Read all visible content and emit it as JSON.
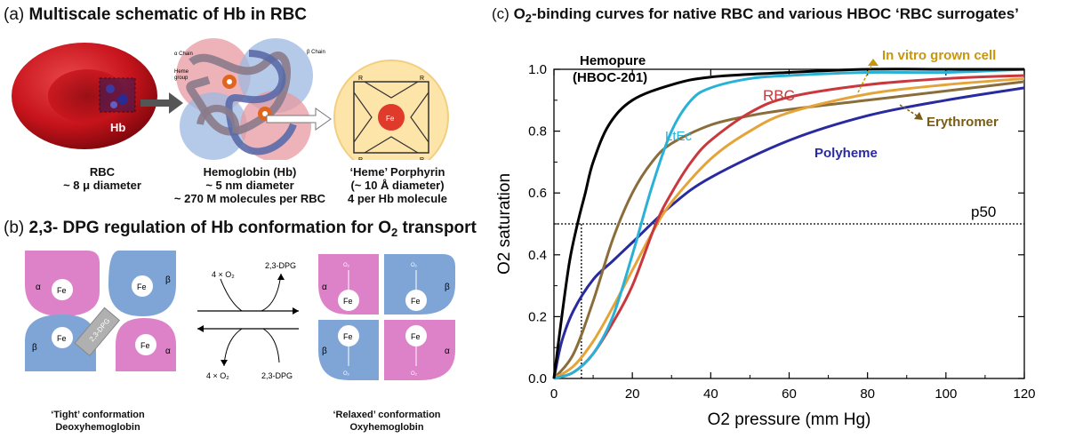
{
  "panel_a": {
    "label": "(a)",
    "title": "Multiscale schematic of Hb in RBC",
    "hb_tag": "Hb",
    "alpha_chain": "α Chain",
    "beta_chain": "β Chain",
    "heme_group_1": "Heme",
    "heme_group_2": "group",
    "porphyrin_fe": "Fe",
    "porphyrin_r": "R",
    "rbc_caption": [
      "RBC",
      "~ 8 μ diameter"
    ],
    "hb_caption": [
      "Hemoglobin (Hb)",
      "~ 5 nm diameter",
      "~ 270 M molecules per RBC"
    ],
    "heme_caption": [
      "‘Heme’ Porphyrin",
      "(~ 10 Å diameter)",
      "4 per Hb molecule"
    ]
  },
  "panel_b": {
    "label": "(b)",
    "title_pre": "2,3- DPG regulation of Hb conformation for O",
    "title_sub": "2",
    "title_post": " transport",
    "fe": "Fe",
    "alpha": "α",
    "beta": "β",
    "dpg_bridge": "2,3-DPG",
    "o2_small": "O₂",
    "top_left_reagent": "4 × O₂",
    "top_right_reagent": "2,3-DPG",
    "bottom_left_reagent": "4 × O₂",
    "bottom_right_reagent": "2,3-DPG",
    "tight_caption": [
      "‘Tight’ conformation",
      "Deoxyhemoglobin"
    ],
    "relaxed_caption": [
      "‘Relaxed’ conformation",
      "Oxyhemoglobin"
    ]
  },
  "panel_c": {
    "label": "(c)",
    "title_pre": "O",
    "title_sub": "2",
    "title_post": "-binding curves for native RBC and various HBOC ‘RBC surrogates’"
  },
  "colors": {
    "alpha_subunit": "#dd82c8",
    "beta_subunit": "#7fa4d6",
    "rbc_red": "#c8141c",
    "hemopure": "#000000",
    "ltec": "#2ab1d6",
    "rbc_curve": "#c8383c",
    "in_vitro": "#e5a43a",
    "erythromer": "#8a6d3b",
    "polyheme": "#2a2aa0",
    "label_invitro": "#c8960c",
    "label_erythromer": "#7a5c14"
  },
  "chart_data": {
    "type": "line",
    "title": "O2-binding curves for native RBC and various HBOC ‘RBC surrogates’",
    "xlabel": "O2 pressure (mm Hg)",
    "ylabel": "O2 saturation",
    "xlim": [
      0,
      120
    ],
    "ylim": [
      0,
      1.0
    ],
    "x_ticks": [
      0,
      20,
      40,
      60,
      80,
      100,
      120
    ],
    "y_ticks": [
      0.0,
      0.2,
      0.4,
      0.6,
      0.8,
      1.0
    ],
    "x_tick_labels": [
      "0",
      "20",
      "40",
      "60",
      "80",
      "100",
      "120"
    ],
    "y_tick_labels": [
      "0.0",
      "0.2",
      "0.4",
      "0.6",
      "0.8",
      "1.0"
    ],
    "grid": false,
    "reference_line": {
      "label": "p50",
      "y": 0.5,
      "x_drop": 7
    },
    "series": [
      {
        "name": "Hemopure (HBOC-201)",
        "label_lines": [
          "Hemopure",
          "(HBOC-201)"
        ],
        "color": "#000000",
        "x": [
          0,
          2,
          4,
          6,
          8,
          10,
          14,
          20,
          30,
          40,
          60,
          80,
          100,
          120
        ],
        "y": [
          0.0,
          0.2,
          0.38,
          0.5,
          0.6,
          0.7,
          0.82,
          0.9,
          0.95,
          0.975,
          0.99,
          1.0,
          1.0,
          1.0
        ]
      },
      {
        "name": "LtEc",
        "label_lines": [
          "LtEc"
        ],
        "color": "#2ab1d6",
        "x": [
          0,
          5,
          10,
          15,
          20,
          25,
          30,
          35,
          40,
          50,
          60,
          80,
          100,
          120
        ],
        "y": [
          0.0,
          0.02,
          0.08,
          0.2,
          0.4,
          0.62,
          0.8,
          0.9,
          0.94,
          0.97,
          0.98,
          0.99,
          0.99,
          1.0
        ]
      },
      {
        "name": "RBC",
        "label_lines": [
          "RBC"
        ],
        "color": "#c8383c",
        "x": [
          0,
          5,
          10,
          15,
          20,
          26,
          30,
          35,
          40,
          50,
          60,
          80,
          100,
          120
        ],
        "y": [
          0.0,
          0.02,
          0.08,
          0.18,
          0.3,
          0.5,
          0.6,
          0.7,
          0.77,
          0.86,
          0.91,
          0.95,
          0.97,
          0.98
        ]
      },
      {
        "name": "In vitro grown cell",
        "label_lines": [
          "In vitro grown cell"
        ],
        "color": "#e5a43a",
        "x": [
          0,
          5,
          10,
          15,
          20,
          25,
          30,
          40,
          50,
          60,
          80,
          100,
          120
        ],
        "y": [
          0.0,
          0.04,
          0.12,
          0.23,
          0.35,
          0.47,
          0.57,
          0.71,
          0.8,
          0.86,
          0.92,
          0.95,
          0.97
        ]
      },
      {
        "name": "Erythromer",
        "label_lines": [
          "Erythromer"
        ],
        "color": "#8a6d3b",
        "x": [
          0,
          5,
          10,
          15,
          20,
          25,
          30,
          40,
          50,
          60,
          80,
          100,
          120
        ],
        "y": [
          0.0,
          0.08,
          0.25,
          0.45,
          0.6,
          0.7,
          0.76,
          0.82,
          0.85,
          0.87,
          0.9,
          0.93,
          0.96
        ]
      },
      {
        "name": "Polyheme",
        "label_lines": [
          "Polyheme"
        ],
        "color": "#2a2aa0",
        "x": [
          0,
          2,
          5,
          10,
          15,
          20,
          30,
          40,
          60,
          80,
          100,
          120
        ],
        "y": [
          0.0,
          0.12,
          0.22,
          0.32,
          0.38,
          0.44,
          0.56,
          0.65,
          0.77,
          0.85,
          0.9,
          0.94
        ]
      }
    ]
  }
}
